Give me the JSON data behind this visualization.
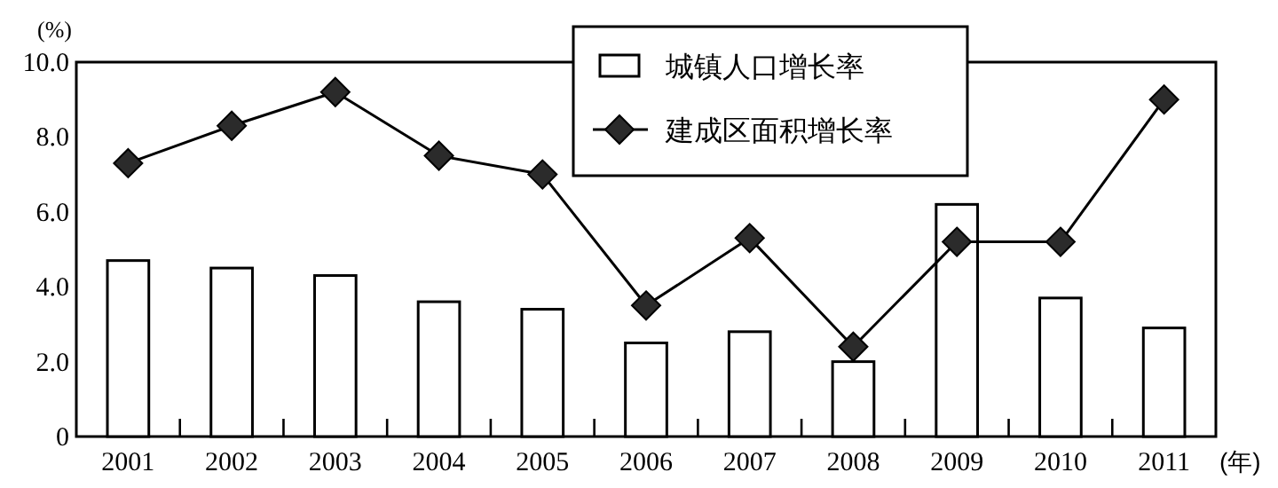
{
  "chart_data": {
    "type": "bar",
    "ylabel": "(%)",
    "xlabel": "(年)",
    "categories": [
      "2001",
      "2002",
      "2003",
      "2004",
      "2005",
      "2006",
      "2007",
      "2008",
      "2009",
      "2010",
      "2011"
    ],
    "series": [
      {
        "name": "城镇人口增长率",
        "color": "#ffffff",
        "values": [
          4.7,
          4.5,
          4.3,
          3.6,
          3.4,
          2.5,
          2.8,
          2.0,
          6.2,
          3.7,
          2.9
        ]
      },
      {
        "name": "建成区面积增长率",
        "type": "line",
        "color": "#2b2b2b",
        "marker": "diamond",
        "values": [
          7.3,
          8.3,
          9.2,
          7.5,
          7.0,
          3.5,
          5.3,
          2.4,
          5.2,
          5.2,
          9.0
        ]
      }
    ],
    "ylim": [
      0,
      10
    ],
    "yticks": [
      {
        "value": 0,
        "label": "0"
      },
      {
        "value": 2,
        "label": "2.0"
      },
      {
        "value": 4,
        "label": "4.0"
      },
      {
        "value": 6,
        "label": "6.0"
      },
      {
        "value": 8,
        "label": "8.0"
      },
      {
        "value": 10,
        "label": "10.0"
      }
    ],
    "legend": "top",
    "grid": false
  }
}
